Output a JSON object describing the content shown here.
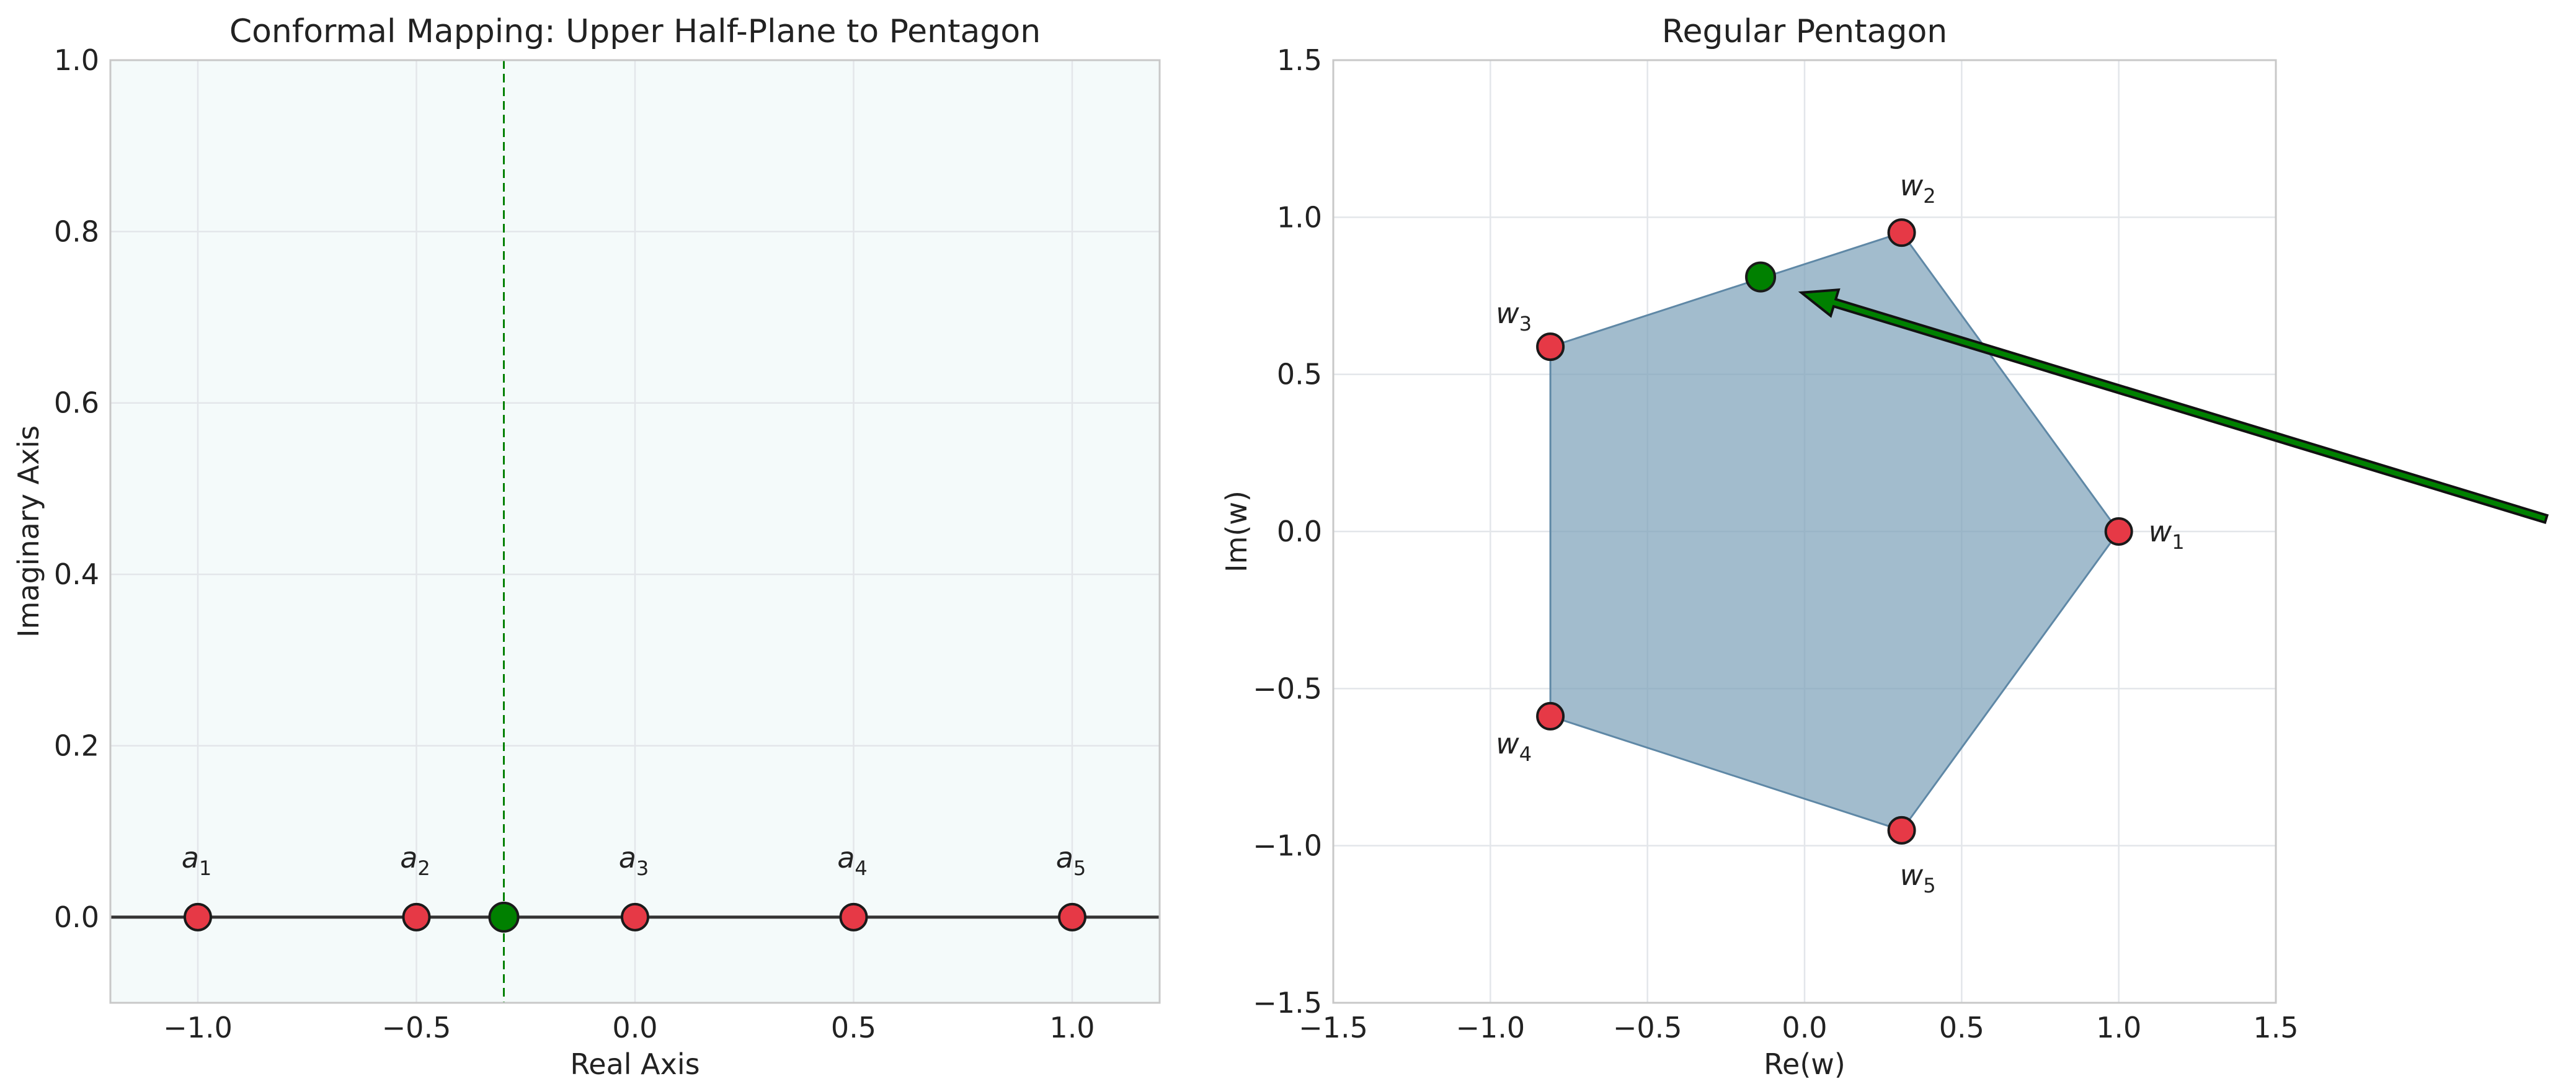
{
  "colors": {
    "vertex": "#e63946",
    "highlight": "#008000",
    "pentagon_fill": "#7a9fb8",
    "pentagon_edge": "#5f88a6",
    "halfplane_fill": "#f4fafa",
    "axis_line": "#333333"
  },
  "chart_data": [
    {
      "type": "scatter",
      "title": "Conformal Mapping: Upper Half-Plane to Pentagon",
      "xlabel": "Real Axis",
      "ylabel": "Imaginary Axis",
      "xlim": [
        -1.2,
        1.2
      ],
      "ylim": [
        -0.1,
        1.0
      ],
      "xticks": [
        -1.0,
        -0.5,
        0.0,
        0.5,
        1.0
      ],
      "yticks": [
        0.0,
        0.2,
        0.4,
        0.6,
        0.8,
        1.0
      ],
      "xtick_labels": [
        "−1.0",
        "−0.5",
        "0.0",
        "0.5",
        "1.0"
      ],
      "ytick_labels": [
        "0.0",
        "0.2",
        "0.4",
        "0.6",
        "0.8",
        "1.0"
      ],
      "grid": true,
      "shaded_region": "upper half-plane",
      "prevertices": [
        {
          "base": "a",
          "sub": "1",
          "x": -1.0,
          "y": 0.0
        },
        {
          "base": "a",
          "sub": "2",
          "x": -0.5,
          "y": 0.0
        },
        {
          "base": "a",
          "sub": "3",
          "x": 0.0,
          "y": 0.0
        },
        {
          "base": "a",
          "sub": "4",
          "x": 0.5,
          "y": 0.0
        },
        {
          "base": "a",
          "sub": "5",
          "x": 1.0,
          "y": 0.0
        }
      ],
      "highlight_point": {
        "x": -0.3,
        "y": 0.0
      },
      "dashed_vertical_x": -0.3
    },
    {
      "type": "scatter",
      "title": "Regular Pentagon",
      "xlabel": "Re(w)",
      "ylabel": "Im(w)",
      "xlim": [
        -1.5,
        1.5
      ],
      "ylim": [
        -1.5,
        1.5
      ],
      "xticks": [
        -1.5,
        -1.0,
        -0.5,
        0.0,
        0.5,
        1.0,
        1.5
      ],
      "yticks": [
        -1.5,
        -1.0,
        -0.5,
        0.0,
        0.5,
        1.0,
        1.5
      ],
      "xtick_labels": [
        "−1.5",
        "−1.0",
        "−0.5",
        "0.0",
        "0.5",
        "1.0",
        "1.5"
      ],
      "ytick_labels": [
        "−1.5",
        "−1.0",
        "−0.5",
        "0.0",
        "0.5",
        "1.0",
        "1.5"
      ],
      "grid": true,
      "vertices": [
        {
          "base": "w",
          "sub": "1",
          "x": 1.0,
          "y": 0.0
        },
        {
          "base": "w",
          "sub": "2",
          "x": 0.309,
          "y": 0.951
        },
        {
          "base": "w",
          "sub": "3",
          "x": -0.809,
          "y": 0.588
        },
        {
          "base": "w",
          "sub": "4",
          "x": -0.809,
          "y": -0.588
        },
        {
          "base": "w",
          "sub": "5",
          "x": 0.309,
          "y": -0.951
        }
      ],
      "highlight_point": {
        "x": -0.14,
        "y": 0.81
      },
      "arrow": {
        "from": {
          "x": 2.36,
          "y": 0.04
        },
        "to": {
          "x": -0.01,
          "y": 0.76
        }
      }
    }
  ]
}
